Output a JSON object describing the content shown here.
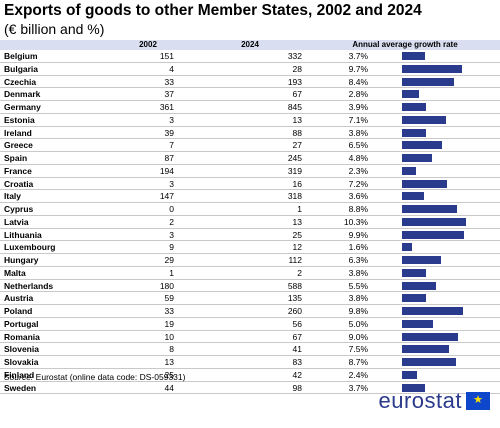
{
  "title": "Exports of goods to other Member States, 2002 and 2024",
  "subtitle": "(€ billion and %)",
  "header": {
    "col_2002": "2002",
    "col_2024": "2024",
    "col_rate": "Annual average growth rate"
  },
  "source_label": "Source:",
  "source_text": "Eurostat (online data code: DS-059331)",
  "logo_text": "eurostat",
  "colors": {
    "bar": "#2a3a8c",
    "header_bg": "#d9dff0"
  },
  "chart_data": {
    "type": "table",
    "columns": [
      "2002",
      "2024",
      "Annual average growth rate"
    ],
    "rows": [
      {
        "country": "Belgium",
        "v2002": "151",
        "v2024": "332",
        "rate": 3.7,
        "rate_label": "3.7%"
      },
      {
        "country": "Bulgaria",
        "v2002": "4",
        "v2024": "28",
        "rate": 9.7,
        "rate_label": "9.7%"
      },
      {
        "country": "Czechia",
        "v2002": "33",
        "v2024": "193",
        "rate": 8.4,
        "rate_label": "8.4%"
      },
      {
        "country": "Denmark",
        "v2002": "37",
        "v2024": "67",
        "rate": 2.8,
        "rate_label": "2.8%"
      },
      {
        "country": "Germany",
        "v2002": "361",
        "v2024": "845",
        "rate": 3.9,
        "rate_label": "3.9%"
      },
      {
        "country": "Estonia",
        "v2002": "3",
        "v2024": "13",
        "rate": 7.1,
        "rate_label": "7.1%"
      },
      {
        "country": "Ireland",
        "v2002": "39",
        "v2024": "88",
        "rate": 3.8,
        "rate_label": "3.8%"
      },
      {
        "country": "Greece",
        "v2002": "7",
        "v2024": "27",
        "rate": 6.5,
        "rate_label": "6.5%"
      },
      {
        "country": "Spain",
        "v2002": "87",
        "v2024": "245",
        "rate": 4.8,
        "rate_label": "4.8%"
      },
      {
        "country": "France",
        "v2002": "194",
        "v2024": "319",
        "rate": 2.3,
        "rate_label": "2.3%"
      },
      {
        "country": "Croatia",
        "v2002": "3",
        "v2024": "16",
        "rate": 7.2,
        "rate_label": "7.2%"
      },
      {
        "country": "Italy",
        "v2002": "147",
        "v2024": "318",
        "rate": 3.6,
        "rate_label": "3.6%"
      },
      {
        "country": "Cyprus",
        "v2002": "0",
        "v2024": "1",
        "rate": 8.8,
        "rate_label": "8.8%"
      },
      {
        "country": "Latvia",
        "v2002": "2",
        "v2024": "13",
        "rate": 10.3,
        "rate_label": "10.3%"
      },
      {
        "country": "Lithuania",
        "v2002": "3",
        "v2024": "25",
        "rate": 9.9,
        "rate_label": "9.9%"
      },
      {
        "country": "Luxembourg",
        "v2002": "9",
        "v2024": "12",
        "rate": 1.6,
        "rate_label": "1.6%"
      },
      {
        "country": "Hungary",
        "v2002": "29",
        "v2024": "112",
        "rate": 6.3,
        "rate_label": "6.3%"
      },
      {
        "country": "Malta",
        "v2002": "1",
        "v2024": "2",
        "rate": 3.8,
        "rate_label": "3.8%"
      },
      {
        "country": "Netherlands",
        "v2002": "180",
        "v2024": "588",
        "rate": 5.5,
        "rate_label": "5.5%"
      },
      {
        "country": "Austria",
        "v2002": "59",
        "v2024": "135",
        "rate": 3.8,
        "rate_label": "3.8%"
      },
      {
        "country": "Poland",
        "v2002": "33",
        "v2024": "260",
        "rate": 9.8,
        "rate_label": "9.8%"
      },
      {
        "country": "Portugal",
        "v2002": "19",
        "v2024": "56",
        "rate": 5.0,
        "rate_label": "5.0%"
      },
      {
        "country": "Romania",
        "v2002": "10",
        "v2024": "67",
        "rate": 9.0,
        "rate_label": "9.0%"
      },
      {
        "country": "Slovenia",
        "v2002": "8",
        "v2024": "41",
        "rate": 7.5,
        "rate_label": "7.5%"
      },
      {
        "country": "Slovakia",
        "v2002": "13",
        "v2024": "83",
        "rate": 8.7,
        "rate_label": "8.7%"
      },
      {
        "country": "Finland",
        "v2002": "25",
        "v2024": "42",
        "rate": 2.4,
        "rate_label": "2.4%"
      },
      {
        "country": "Sweden",
        "v2002": "44",
        "v2024": "98",
        "rate": 3.7,
        "rate_label": "3.7%"
      }
    ]
  }
}
